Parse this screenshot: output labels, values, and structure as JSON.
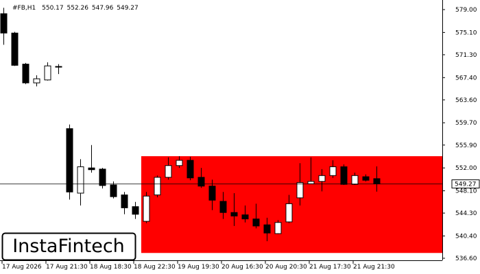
{
  "chart_data": {
    "type": "candlestick",
    "title": "#FB,H1",
    "watermark": "InstaFintech",
    "bull_color": "#ffffff",
    "bear_color": "#000000",
    "zone": {
      "top": 554.0,
      "bottom": 537.5,
      "color": "#ff0000"
    },
    "categories": [
      "17 Aug 2026",
      null,
      null,
      null,
      "17 Aug 21:30",
      null,
      null,
      null,
      "18 Aug 18:30",
      null,
      null,
      null,
      "18 Aug 22:30",
      null,
      null,
      null,
      "19 Aug 19:30",
      null,
      null,
      null,
      "20 Aug 16:30",
      null,
      null,
      null,
      "20 Aug 20:30",
      null,
      null,
      null,
      "21 Aug 17:30",
      null,
      null,
      null,
      "21 Aug 21:30",
      null,
      null
    ],
    "open": [
      578.3,
      575.0,
      569.7,
      566.5,
      567.0,
      569.3,
      558.7,
      547.7,
      552.0,
      551.8,
      549.1,
      547.4,
      545.4,
      542.9,
      547.4,
      550.4,
      552.4,
      553.3,
      550.4,
      548.9,
      546.3,
      544.4,
      544.0,
      543.3,
      542.3,
      540.8,
      542.8,
      546.9,
      549.3,
      549.7,
      550.7,
      552.2,
      549.2,
      550.5,
      550.17
    ],
    "high": [
      579.3,
      575.2,
      569.9,
      567.8,
      570.0,
      569.7,
      559.4,
      553.5,
      555.9,
      552.0,
      549.7,
      547.9,
      546.2,
      547.9,
      550.7,
      553.8,
      554.0,
      553.9,
      552.0,
      550.0,
      547.9,
      547.7,
      545.6,
      545.9,
      543.5,
      543.1,
      547.4,
      552.8,
      553.8,
      551.8,
      553.3,
      552.6,
      551.2,
      550.9,
      552.26
    ],
    "low": [
      573.0,
      569.4,
      566.3,
      565.9,
      566.9,
      568.0,
      546.6,
      545.6,
      551.2,
      548.5,
      546.8,
      544.1,
      543.3,
      542.6,
      547.0,
      550.0,
      552.0,
      549.9,
      548.6,
      544.8,
      543.3,
      542.1,
      542.7,
      541.7,
      539.5,
      540.7,
      542.6,
      545.6,
      549.3,
      548.0,
      550.3,
      549.1,
      549.1,
      549.7,
      547.96
    ],
    "close": [
      575.0,
      569.5,
      566.5,
      567.2,
      569.4,
      569.2,
      547.9,
      552.2,
      551.7,
      549.0,
      547.1,
      545.2,
      544.1,
      547.2,
      550.4,
      552.4,
      553.3,
      550.3,
      548.9,
      546.5,
      544.4,
      543.8,
      543.3,
      542.1,
      540.9,
      542.7,
      545.9,
      549.5,
      549.7,
      550.7,
      552.2,
      549.2,
      550.7,
      549.9,
      549.27
    ],
    "ylim": [
      536.6,
      579.0
    ],
    "yticks": [
      {
        "value": 579.0,
        "label": "579.00"
      },
      {
        "value": 575.1,
        "label": "575.10"
      },
      {
        "value": 571.3,
        "label": "571.30"
      },
      {
        "value": 567.4,
        "label": "567.40"
      },
      {
        "value": 563.6,
        "label": "563.60"
      },
      {
        "value": 559.7,
        "label": "559.70"
      },
      {
        "value": 555.9,
        "label": "555.90"
      },
      {
        "value": 552.0,
        "label": "552.00"
      },
      {
        "value": 548.1,
        "label": "548.10"
      },
      {
        "value": 544.3,
        "label": "544.30"
      },
      {
        "value": 540.4,
        "label": "540.40"
      },
      {
        "value": 536.6,
        "label": "536.60"
      }
    ]
  }
}
